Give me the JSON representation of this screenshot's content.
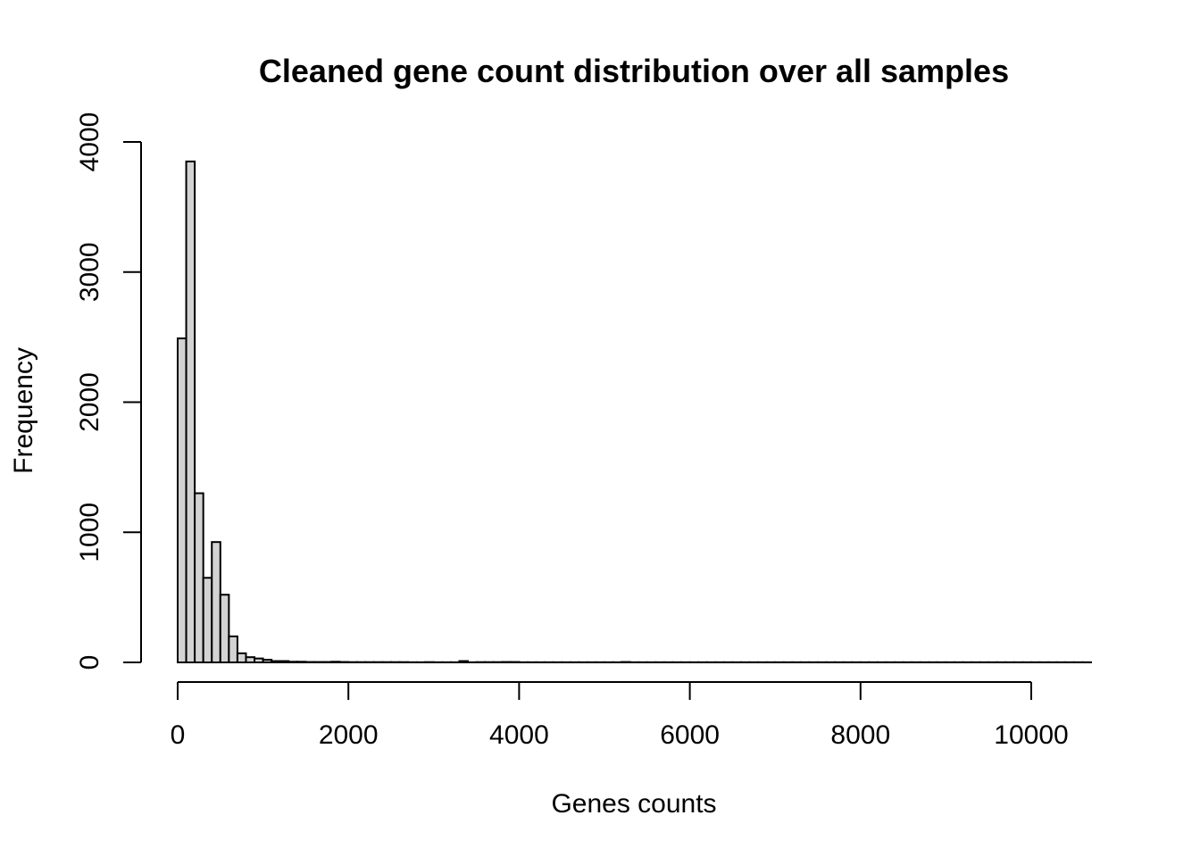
{
  "chart_data": {
    "type": "bar",
    "subtype": "histogram",
    "title": "Cleaned gene count distribution over all samples",
    "xlabel": "Genes counts",
    "ylabel": "Frequency",
    "xlim": [
      0,
      10700
    ],
    "ylim": [
      0,
      4000
    ],
    "x_ticks": [
      0,
      2000,
      4000,
      6000,
      8000,
      10000
    ],
    "x_tick_labels": [
      "0",
      "2000",
      "4000",
      "6000",
      "8000",
      "10000"
    ],
    "y_ticks": [
      0,
      1000,
      2000,
      3000,
      4000
    ],
    "y_tick_labels": [
      "0",
      "1000",
      "2000",
      "3000",
      "4000"
    ],
    "bin_width": 100,
    "bin_start": 0,
    "values": [
      2490,
      3850,
      1300,
      650,
      925,
      520,
      200,
      70,
      40,
      30,
      20,
      10,
      10,
      5,
      5,
      3,
      3,
      3,
      5,
      3,
      2,
      2,
      2,
      2,
      2,
      2,
      2,
      1,
      1,
      2,
      1,
      1,
      1,
      10,
      1,
      2,
      2,
      2,
      3,
      3,
      1,
      1,
      1,
      1,
      1,
      1,
      1,
      1,
      1,
      1,
      1,
      1,
      3,
      1,
      1,
      1,
      1,
      1,
      1,
      1,
      1,
      1,
      1,
      1,
      1,
      1,
      1,
      1,
      1,
      1,
      1,
      1,
      1,
      1,
      1,
      1,
      1,
      1,
      1,
      1,
      1,
      1,
      1,
      1,
      1,
      1,
      1,
      1,
      1,
      1,
      1,
      1,
      1,
      1,
      1,
      1,
      1,
      1,
      1,
      1,
      1,
      1,
      1,
      1,
      1,
      1,
      1
    ],
    "fill_color": "#d3d3d3",
    "border_color": "#000000",
    "grid": false
  }
}
